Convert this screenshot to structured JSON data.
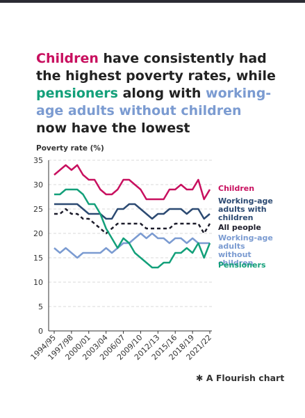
{
  "chart_data": {
    "type": "line",
    "title_parts": [
      {
        "text": "Children",
        "color": "#c8105f"
      },
      {
        "text": "have consistently had the highest poverty rates, while",
        "color": "#222222"
      },
      {
        "text": "pensioners",
        "color": "#13a07a"
      },
      {
        "text": "along with",
        "color": "#222222"
      },
      {
        "text": "working-age adults without children",
        "color": "#7b9bd1"
      },
      {
        "text": "now have the lowest",
        "color": "#222222"
      }
    ],
    "y_label": "Poverty rate (%)",
    "categories": [
      "1994/95",
      null,
      null,
      "1997/98",
      null,
      null,
      "2000/01",
      null,
      null,
      "2003/04",
      null,
      null,
      "2006/07",
      null,
      null,
      "2009/10",
      null,
      null,
      "2012/13",
      null,
      null,
      "2015/16",
      null,
      null,
      "2018/19",
      null,
      null,
      "2021/22"
    ],
    "ylim": [
      0,
      35
    ],
    "yticks": [
      0,
      5,
      10,
      15,
      20,
      25,
      30,
      35
    ],
    "grid": true,
    "series": [
      {
        "name": "Children",
        "color": "#c8105f",
        "values": [
          32,
          33,
          34,
          33,
          34,
          32,
          31,
          31,
          29,
          28,
          28,
          29,
          31,
          31,
          30,
          29,
          27,
          27,
          27,
          27,
          29,
          29,
          30,
          29,
          29,
          31,
          27,
          29
        ]
      },
      {
        "name": "Working-age adults with children",
        "color": "#2c4a72",
        "values": [
          26,
          26,
          26,
          26,
          26,
          25,
          24,
          24,
          24,
          23,
          23,
          25,
          25,
          26,
          26,
          25,
          24,
          23,
          24,
          24,
          25,
          25,
          25,
          24,
          25,
          25,
          23,
          24
        ]
      },
      {
        "name": "All people",
        "color": "#1d1d2b",
        "dashed": true,
        "values": [
          24,
          24,
          25,
          24,
          24,
          23,
          23,
          22,
          21,
          20,
          21,
          22,
          22,
          22,
          22,
          22,
          21,
          21,
          21,
          21,
          21,
          22,
          22,
          22,
          22,
          22,
          20,
          22
        ]
      },
      {
        "name": "Working-age adults without children",
        "color": "#7b9bd1",
        "values": [
          17,
          16,
          17,
          16,
          15,
          16,
          16,
          16,
          16,
          17,
          16,
          17,
          18,
          18,
          19,
          20,
          19,
          20,
          19,
          19,
          18,
          19,
          19,
          18,
          19,
          18,
          18,
          18
        ]
      },
      {
        "name": "Pensioners",
        "color": "#13a07a",
        "values": [
          28,
          28,
          29,
          29,
          29,
          28,
          26,
          26,
          24,
          21,
          19,
          17,
          19,
          18,
          16,
          15,
          14,
          13,
          13,
          14,
          14,
          16,
          16,
          17,
          16,
          18,
          15,
          18
        ]
      }
    ],
    "footer": "A Flourish chart"
  }
}
